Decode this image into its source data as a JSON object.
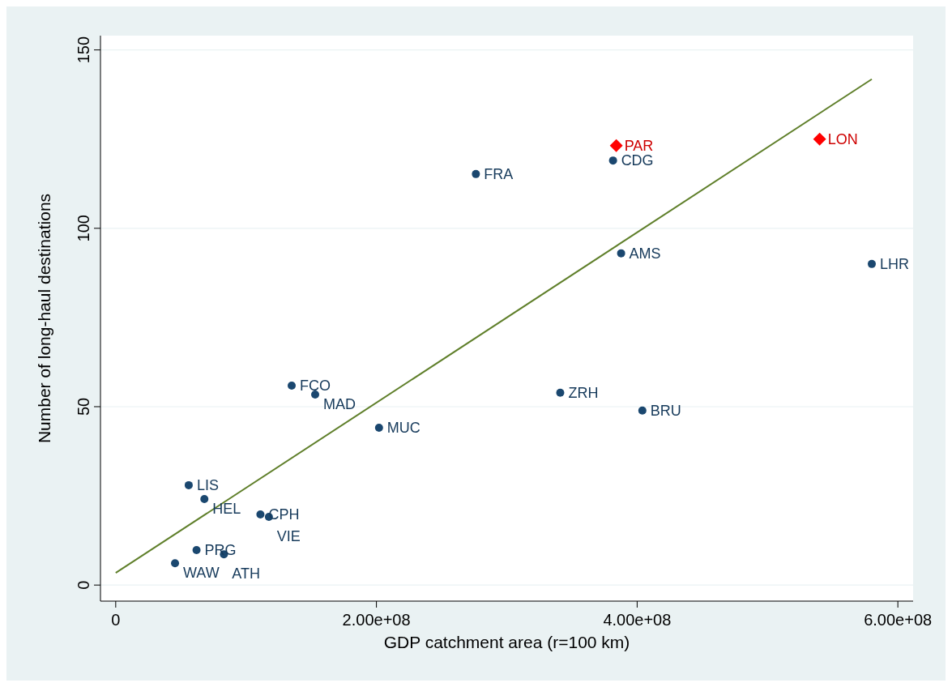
{
  "chart_data": {
    "type": "scatter",
    "xlabel": "GDP catchment area (r=100 km)",
    "ylabel": "Number of long-haul destinations",
    "xlim": [
      -11700000,
      611700000
    ],
    "ylim": [
      -4.5,
      154
    ],
    "xticks": [
      0,
      {
        "value": 200000000,
        "label": "2.00e+08"
      },
      {
        "value": 400000000,
        "label": "4.00e+08"
      },
      {
        "value": 600000000,
        "label": "6.00e+08"
      }
    ],
    "yticks": [
      0,
      50,
      100,
      150
    ],
    "grid": "y",
    "series": [
      {
        "marker": "circle",
        "color": "#1a476f",
        "x": [
          381500000,
          276300000,
          387700000,
          580000000,
          341000000,
          404000000,
          135000000,
          153000000,
          202000000,
          56000000,
          68000000,
          111000000,
          117500000,
          62000000,
          83000000,
          45500000
        ],
        "values": [
          119,
          115.2,
          93,
          90,
          53.9,
          48.9,
          55.9,
          53.4,
          44.1,
          28,
          24.1,
          19.8,
          19.1,
          9.8,
          8.6,
          6.1
        ]
      },
      {
        "marker": "diamond",
        "color": "#ff0000",
        "x": [
          384000000,
          540000000
        ],
        "values": [
          123.2,
          125
        ]
      },
      {
        "type": "line",
        "color": "#5f7f2a",
        "x": [
          0,
          580000000
        ],
        "values": [
          3.4,
          141.8
        ]
      }
    ],
    "annotations": [
      {
        "text": "CDG",
        "x": 381500000,
        "y": 119
      },
      {
        "text": "FRA",
        "x": 276300000,
        "y": 115.2
      },
      {
        "text": "AMS",
        "x": 387700000,
        "y": 93
      },
      {
        "text": "LHR",
        "x": 580000000,
        "y": 90
      },
      {
        "text": "ZRH",
        "x": 341000000,
        "y": 53.9
      },
      {
        "text": "BRU",
        "x": 404000000,
        "y": 48.9
      },
      {
        "text": "FCO",
        "x": 135000000,
        "y": 55.9
      },
      {
        "text": "MAD",
        "x": 153000000,
        "y": 53.4
      },
      {
        "text": "MUC",
        "x": 202000000,
        "y": 44.1
      },
      {
        "text": "LIS",
        "x": 56000000,
        "y": 28
      },
      {
        "text": "HEL",
        "x": 68000000,
        "y": 24.1
      },
      {
        "text": "CPH",
        "x": 111000000,
        "y": 19.8
      },
      {
        "text": "VIE",
        "x": 117500000,
        "y": 19.1
      },
      {
        "text": "PRG",
        "x": 62000000,
        "y": 9.8
      },
      {
        "text": "ATH",
        "x": 83000000,
        "y": 8.6
      },
      {
        "text": "WAW",
        "x": 45500000,
        "y": 6.1
      },
      {
        "text": "PAR",
        "x": 384000000,
        "y": 123.2
      },
      {
        "text": "LON",
        "x": 540000000,
        "y": 125
      }
    ]
  }
}
